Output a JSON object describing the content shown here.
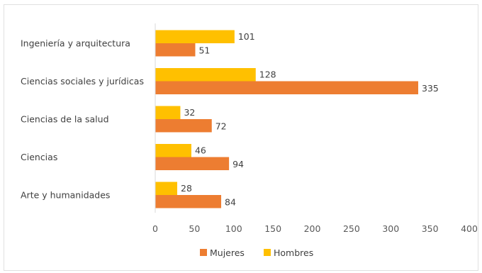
{
  "chart_data": {
    "type": "bar",
    "orientation": "horizontal",
    "categories": [
      "Ingeniería y arquitectura",
      "Ciencias sociales y jurídicas",
      "Ciencias de la salud",
      "Ciencias",
      "Arte y humanidades"
    ],
    "series": [
      {
        "name": "Hombres",
        "color": "#FFC000",
        "values": [
          101,
          128,
          32,
          46,
          28
        ]
      },
      {
        "name": "Mujeres",
        "color": "#ED7D31",
        "values": [
          51,
          335,
          72,
          94,
          84
        ]
      }
    ],
    "xlim": [
      0,
      400
    ],
    "x_ticks": [
      "0",
      "50",
      "100",
      "150",
      "200",
      "250",
      "300",
      "350",
      "400"
    ],
    "legend": {
      "position": "bottom",
      "entries": [
        {
          "label": "Mujeres",
          "color": "#ED7D31"
        },
        {
          "label": "Hombres",
          "color": "#FFC000"
        }
      ]
    },
    "grid": false,
    "axis_color": "#d9d9d9"
  }
}
